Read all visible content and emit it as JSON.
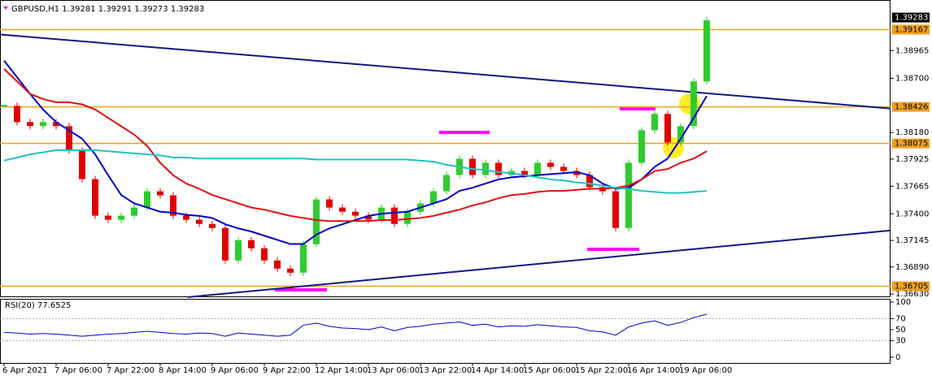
{
  "chart_data": [
    {
      "type": "candle",
      "title": "GBPUSD,H1  1.39281 1.39291 1.39273 1.39283",
      "categories": [
        "6 Apr 2021",
        null,
        null,
        null,
        "7 Apr 06:00",
        null,
        null,
        null,
        "7 Apr 22:00",
        null,
        null,
        null,
        "8 Apr 14:00",
        null,
        null,
        null,
        "9 Apr 06:00",
        null,
        null,
        null,
        "9 Apr 22:00",
        null,
        null,
        null,
        "12 Apr 14:00",
        null,
        null,
        null,
        "13 Apr 06:00",
        null,
        null,
        null,
        "13 Apr 22:00",
        null,
        null,
        null,
        "14 Apr 14:00",
        null,
        null,
        null,
        "15 Apr 06:00",
        null,
        null,
        null,
        "15 Apr 22:00",
        null,
        null,
        null,
        "16 Apr 14:00",
        null,
        null,
        null,
        "19 Apr 06:00",
        null,
        null
      ],
      "close": [
        1.38436,
        1.3828,
        1.38241,
        1.3828,
        1.38241,
        1.38006,
        1.37733,
        1.37382,
        1.37343,
        1.37382,
        1.3746,
        1.37616,
        1.37577,
        1.37382,
        1.37343,
        1.37303,
        1.37264,
        1.36952,
        1.37147,
        1.37069,
        1.36952,
        1.36874,
        1.36835,
        1.37108,
        1.37538,
        1.3746,
        1.3742,
        1.37382,
        1.37343,
        1.3746,
        1.37303,
        1.3742,
        1.37499,
        1.37616,
        1.37772,
        1.37928,
        1.37772,
        1.37889,
        1.37772,
        1.37811,
        1.37772,
        1.37889,
        1.3785,
        1.37811,
        1.37772,
        1.37655,
        1.37616,
        1.37264,
        1.37889,
        1.38202,
        1.38358,
        1.38084,
        1.38241,
        1.3867,
        1.39256
      ],
      "up_color": "#2ecc2e",
      "down_color": "#e00000",
      "series": [
        {
          "color": "#0000c8",
          "values": [
            1.3887,
            1.3871,
            1.3855,
            1.384,
            1.3828,
            1.382,
            1.3812,
            1.3797,
            1.3777,
            1.3758,
            1.375,
            1.3746,
            1.3742,
            1.3741,
            1.3739,
            1.3738,
            1.3736,
            1.373,
            1.3726,
            1.3723,
            1.3719,
            1.3715,
            1.3711,
            1.3711,
            1.372,
            1.3726,
            1.373,
            1.3734,
            1.3738,
            1.374,
            1.3741,
            1.3742,
            1.3746,
            1.375,
            1.3754,
            1.3762,
            1.3765,
            1.3769,
            1.3773,
            1.3775,
            1.3776,
            1.3777,
            1.3778,
            1.3779,
            1.378,
            1.3777,
            1.3769,
            1.3764,
            1.3765,
            1.3773,
            1.3785,
            1.3793,
            1.3812,
            1.3832,
            1.3853
          ]
        },
        {
          "color": "#e01010",
          "values": [
            1.3879,
            1.3867,
            1.3855,
            1.385,
            1.3847,
            1.3847,
            1.3845,
            1.384,
            1.3832,
            1.3824,
            1.3816,
            1.3805,
            1.3789,
            1.3777,
            1.3769,
            1.3764,
            1.3758,
            1.3754,
            1.375,
            1.3746,
            1.3744,
            1.3741,
            1.3738,
            1.3736,
            1.3734,
            1.3733,
            1.3733,
            1.3733,
            1.3733,
            1.3734,
            1.3734,
            1.3735,
            1.3736,
            1.3738,
            1.3741,
            1.3744,
            1.3748,
            1.3751,
            1.3755,
            1.3758,
            1.3759,
            1.3761,
            1.3762,
            1.3762,
            1.3763,
            1.3764,
            1.3764,
            1.3765,
            1.3767,
            1.3773,
            1.3781,
            1.3783,
            1.3789,
            1.3793,
            1.38
          ]
        },
        {
          "color": "#20c0c0",
          "values": [
            1.3791,
            1.3794,
            1.3797,
            1.3799,
            1.3801,
            1.3801,
            1.3801,
            1.3801,
            1.38,
            1.3799,
            1.3798,
            1.3797,
            1.3796,
            1.3794,
            1.3794,
            1.3793,
            1.3793,
            1.3793,
            1.3793,
            1.3793,
            1.3793,
            1.3793,
            1.3793,
            1.3793,
            1.3792,
            1.3792,
            1.3792,
            1.3792,
            1.3792,
            1.3792,
            1.3792,
            1.3792,
            1.3791,
            1.379,
            1.3787,
            1.3785,
            1.3783,
            1.3782,
            1.378,
            1.3779,
            1.3777,
            1.3775,
            1.3773,
            1.3772,
            1.377,
            1.3769,
            1.3767,
            1.3765,
            1.3764,
            1.3762,
            1.3761,
            1.376,
            1.376,
            1.3761,
            1.3762
          ]
        }
      ],
      "trendlines": [
        {
          "color": "#101880",
          "x": [
            -0.3,
            68.1
          ],
          "values": [
            1.3912,
            1.3841
          ]
        },
        {
          "color": "#101880",
          "x": [
            14.1,
            68.1
          ],
          "values": [
            1.366,
            1.3724
          ]
        }
      ],
      "levels": [
        1.39167,
        1.38426,
        1.38075,
        1.36705
      ],
      "level_color": "#f0a020",
      "current_price": 1.39283,
      "ylim": [
        1.366,
        1.3942
      ],
      "yticks": [
        {
          "value": 1.3663,
          "label": "1.36630"
        },
        {
          "value": 1.3689,
          "label": "1.36890"
        },
        1.37145,
        {
          "value": 1.374,
          "label": "1.37400"
        },
        1.37665,
        1.37925,
        {
          "value": 1.3818,
          "label": "1.38180"
        },
        {
          "value": 1.387,
          "label": "1.38700"
        },
        1.38965
      ],
      "grid": false
    },
    {
      "type": "line",
      "title": "RSI(20) 77.6525",
      "values": [
        45,
        44,
        42,
        43,
        42,
        40,
        38,
        40,
        42,
        43,
        45,
        47,
        45,
        43,
        42,
        44,
        43,
        38,
        44,
        42,
        40,
        38,
        40,
        58,
        62,
        56,
        53,
        52,
        50,
        55,
        48,
        54,
        56,
        60,
        62,
        64,
        58,
        60,
        55,
        57,
        56,
        59,
        57,
        55,
        54,
        48,
        46,
        40,
        55,
        62,
        66,
        58,
        63,
        72,
        78
      ],
      "color": "#0000c8",
      "levels": [
        70,
        30
      ],
      "ylim": [
        0,
        100
      ],
      "yticks": [
        0,
        30,
        50,
        70,
        100
      ]
    }
  ]
}
